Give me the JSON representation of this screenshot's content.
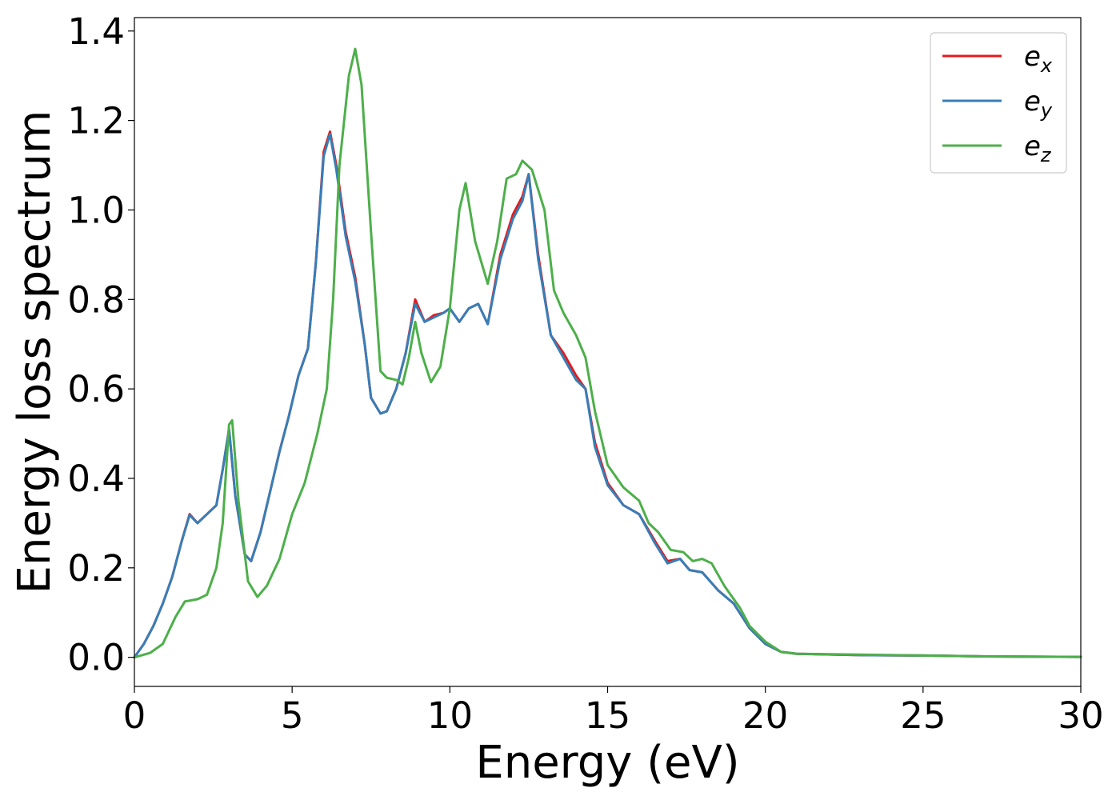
{
  "chart_data": {
    "type": "line",
    "xlabel": "Energy (eV)",
    "ylabel": "Energy loss spectrum",
    "xlim": [
      0,
      30
    ],
    "ylim": [
      -0.065,
      1.43
    ],
    "xticks": [
      0,
      5,
      10,
      15,
      20,
      25,
      30
    ],
    "yticks": [
      0.0,
      0.2,
      0.4,
      0.6,
      0.8,
      1.0,
      1.2,
      1.4
    ],
    "xtick_labels": [
      "0",
      "5",
      "10",
      "15",
      "20",
      "25",
      "30"
    ],
    "ytick_labels": [
      "0.0",
      "0.2",
      "0.4",
      "0.6",
      "0.8",
      "1.0",
      "1.2",
      "1.4"
    ],
    "grid": false,
    "legend_position": "top-right",
    "series": [
      {
        "name": "e_x",
        "label_base": "e",
        "label_sub": "x",
        "color": "#e41a1c",
        "points": [
          [
            0,
            0
          ],
          [
            0.3,
            0.03
          ],
          [
            0.6,
            0.07
          ],
          [
            0.9,
            0.12
          ],
          [
            1.2,
            0.18
          ],
          [
            1.5,
            0.26
          ],
          [
            1.75,
            0.32
          ],
          [
            2.0,
            0.3
          ],
          [
            2.3,
            0.32
          ],
          [
            2.6,
            0.34
          ],
          [
            2.8,
            0.42
          ],
          [
            3.0,
            0.51
          ],
          [
            3.2,
            0.36
          ],
          [
            3.5,
            0.23
          ],
          [
            3.7,
            0.215
          ],
          [
            4.0,
            0.28
          ],
          [
            4.3,
            0.37
          ],
          [
            4.6,
            0.46
          ],
          [
            4.9,
            0.54
          ],
          [
            5.2,
            0.63
          ],
          [
            5.5,
            0.69
          ],
          [
            5.75,
            0.88
          ],
          [
            6.0,
            1.13
          ],
          [
            6.2,
            1.175
          ],
          [
            6.4,
            1.1
          ],
          [
            6.7,
            0.95
          ],
          [
            7.0,
            0.85
          ],
          [
            7.3,
            0.7
          ],
          [
            7.5,
            0.58
          ],
          [
            7.8,
            0.545
          ],
          [
            8.0,
            0.55
          ],
          [
            8.3,
            0.6
          ],
          [
            8.6,
            0.68
          ],
          [
            8.9,
            0.8
          ],
          [
            9.2,
            0.75
          ],
          [
            9.5,
            0.765
          ],
          [
            9.8,
            0.77
          ],
          [
            10.0,
            0.78
          ],
          [
            10.3,
            0.75
          ],
          [
            10.6,
            0.78
          ],
          [
            10.9,
            0.79
          ],
          [
            11.2,
            0.745
          ],
          [
            11.6,
            0.9
          ],
          [
            12.0,
            0.99
          ],
          [
            12.3,
            1.03
          ],
          [
            12.5,
            1.08
          ],
          [
            12.8,
            0.9
          ],
          [
            13.2,
            0.72
          ],
          [
            13.6,
            0.68
          ],
          [
            14.0,
            0.63
          ],
          [
            14.3,
            0.6
          ],
          [
            14.6,
            0.48
          ],
          [
            15.0,
            0.39
          ],
          [
            15.5,
            0.34
          ],
          [
            16.0,
            0.32
          ],
          [
            16.5,
            0.26
          ],
          [
            16.9,
            0.215
          ],
          [
            17.3,
            0.22
          ],
          [
            17.6,
            0.195
          ],
          [
            18.0,
            0.19
          ],
          [
            18.5,
            0.15
          ],
          [
            19.0,
            0.12
          ],
          [
            19.5,
            0.065
          ],
          [
            20.0,
            0.03
          ],
          [
            20.5,
            0.012
          ],
          [
            21.0,
            0.008
          ],
          [
            23.0,
            0.005
          ],
          [
            25.0,
            0.004
          ],
          [
            27.0,
            0.002
          ],
          [
            30.0,
            0.001
          ]
        ]
      },
      {
        "name": "e_y",
        "label_base": "e",
        "label_sub": "y",
        "color": "#377eb8",
        "points": [
          [
            0,
            0
          ],
          [
            0.3,
            0.03
          ],
          [
            0.6,
            0.07
          ],
          [
            0.9,
            0.12
          ],
          [
            1.2,
            0.18
          ],
          [
            1.5,
            0.26
          ],
          [
            1.75,
            0.318
          ],
          [
            2.0,
            0.3
          ],
          [
            2.3,
            0.32
          ],
          [
            2.6,
            0.34
          ],
          [
            2.8,
            0.42
          ],
          [
            3.0,
            0.51
          ],
          [
            3.2,
            0.36
          ],
          [
            3.5,
            0.23
          ],
          [
            3.7,
            0.215
          ],
          [
            4.0,
            0.28
          ],
          [
            4.3,
            0.37
          ],
          [
            4.6,
            0.46
          ],
          [
            4.9,
            0.54
          ],
          [
            5.2,
            0.63
          ],
          [
            5.5,
            0.69
          ],
          [
            5.75,
            0.88
          ],
          [
            6.0,
            1.12
          ],
          [
            6.2,
            1.17
          ],
          [
            6.4,
            1.09
          ],
          [
            6.7,
            0.94
          ],
          [
            7.0,
            0.84
          ],
          [
            7.3,
            0.7
          ],
          [
            7.5,
            0.58
          ],
          [
            7.8,
            0.545
          ],
          [
            8.0,
            0.55
          ],
          [
            8.3,
            0.6
          ],
          [
            8.6,
            0.68
          ],
          [
            8.9,
            0.79
          ],
          [
            9.2,
            0.75
          ],
          [
            9.5,
            0.76
          ],
          [
            9.8,
            0.77
          ],
          [
            10.0,
            0.78
          ],
          [
            10.3,
            0.75
          ],
          [
            10.6,
            0.78
          ],
          [
            10.9,
            0.79
          ],
          [
            11.2,
            0.745
          ],
          [
            11.6,
            0.89
          ],
          [
            12.0,
            0.98
          ],
          [
            12.3,
            1.02
          ],
          [
            12.5,
            1.08
          ],
          [
            12.8,
            0.89
          ],
          [
            13.2,
            0.72
          ],
          [
            13.6,
            0.67
          ],
          [
            14.0,
            0.62
          ],
          [
            14.3,
            0.6
          ],
          [
            14.6,
            0.47
          ],
          [
            15.0,
            0.385
          ],
          [
            15.5,
            0.34
          ],
          [
            16.0,
            0.32
          ],
          [
            16.5,
            0.255
          ],
          [
            16.9,
            0.21
          ],
          [
            17.3,
            0.22
          ],
          [
            17.6,
            0.195
          ],
          [
            18.0,
            0.19
          ],
          [
            18.5,
            0.15
          ],
          [
            19.0,
            0.12
          ],
          [
            19.5,
            0.065
          ],
          [
            20.0,
            0.03
          ],
          [
            20.5,
            0.012
          ],
          [
            21.0,
            0.008
          ],
          [
            23.0,
            0.005
          ],
          [
            25.0,
            0.004
          ],
          [
            27.0,
            0.002
          ],
          [
            30.0,
            0.001
          ]
        ]
      },
      {
        "name": "e_z",
        "label_base": "e",
        "label_sub": "z",
        "color": "#4daf4a",
        "points": [
          [
            0,
            0
          ],
          [
            0.5,
            0.01
          ],
          [
            0.9,
            0.03
          ],
          [
            1.3,
            0.09
          ],
          [
            1.6,
            0.125
          ],
          [
            2.0,
            0.13
          ],
          [
            2.3,
            0.14
          ],
          [
            2.6,
            0.2
          ],
          [
            2.8,
            0.3
          ],
          [
            3.0,
            0.52
          ],
          [
            3.1,
            0.53
          ],
          [
            3.3,
            0.35
          ],
          [
            3.6,
            0.17
          ],
          [
            3.9,
            0.135
          ],
          [
            4.2,
            0.16
          ],
          [
            4.6,
            0.22
          ],
          [
            5.0,
            0.32
          ],
          [
            5.4,
            0.39
          ],
          [
            5.8,
            0.5
          ],
          [
            6.1,
            0.6
          ],
          [
            6.3,
            0.8
          ],
          [
            6.5,
            1.1
          ],
          [
            6.8,
            1.3
          ],
          [
            7.0,
            1.36
          ],
          [
            7.2,
            1.28
          ],
          [
            7.5,
            0.95
          ],
          [
            7.8,
            0.64
          ],
          [
            8.0,
            0.625
          ],
          [
            8.3,
            0.62
          ],
          [
            8.5,
            0.61
          ],
          [
            8.7,
            0.67
          ],
          [
            8.9,
            0.75
          ],
          [
            9.1,
            0.68
          ],
          [
            9.4,
            0.615
          ],
          [
            9.7,
            0.65
          ],
          [
            10.0,
            0.78
          ],
          [
            10.3,
            1.0
          ],
          [
            10.5,
            1.06
          ],
          [
            10.8,
            0.93
          ],
          [
            11.2,
            0.835
          ],
          [
            11.5,
            0.93
          ],
          [
            11.8,
            1.07
          ],
          [
            12.1,
            1.08
          ],
          [
            12.3,
            1.11
          ],
          [
            12.6,
            1.09
          ],
          [
            13.0,
            1.0
          ],
          [
            13.3,
            0.82
          ],
          [
            13.6,
            0.77
          ],
          [
            14.0,
            0.72
          ],
          [
            14.3,
            0.67
          ],
          [
            14.6,
            0.55
          ],
          [
            15.0,
            0.43
          ],
          [
            15.5,
            0.38
          ],
          [
            16.0,
            0.35
          ],
          [
            16.3,
            0.3
          ],
          [
            16.6,
            0.28
          ],
          [
            17.0,
            0.24
          ],
          [
            17.4,
            0.235
          ],
          [
            17.7,
            0.215
          ],
          [
            18.0,
            0.22
          ],
          [
            18.3,
            0.21
          ],
          [
            18.7,
            0.16
          ],
          [
            19.2,
            0.11
          ],
          [
            19.5,
            0.07
          ],
          [
            20.0,
            0.035
          ],
          [
            20.5,
            0.012
          ],
          [
            21.0,
            0.008
          ],
          [
            23.0,
            0.006
          ],
          [
            25.0,
            0.004
          ],
          [
            27.0,
            0.002
          ],
          [
            30.0,
            0.001
          ]
        ]
      }
    ]
  }
}
